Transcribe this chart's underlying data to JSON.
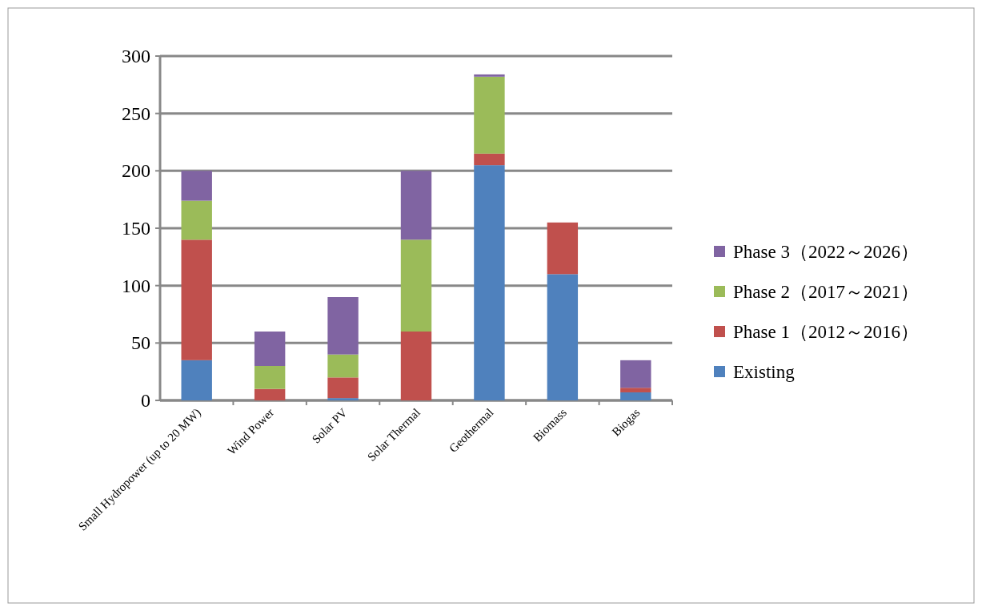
{
  "chart_data": {
    "type": "bar",
    "stacked": true,
    "categories": [
      "Small Hydropower (up to 20 MW)",
      "Wind Power",
      "Solar PV",
      "Solar Thermal",
      "Geothermal",
      "Biomass",
      "Biogas"
    ],
    "series": [
      {
        "name": "Existing",
        "color": "#4f81bd",
        "values": [
          35,
          0,
          2,
          0,
          205,
          110,
          7
        ]
      },
      {
        "name": "Phase 1（2012～2016）",
        "color": "#c0504d",
        "values": [
          105,
          10,
          18,
          60,
          10,
          45,
          4
        ]
      },
      {
        "name": "Phase 2（2017～2021）",
        "color": "#9bbb59",
        "values": [
          34,
          20,
          20,
          80,
          67,
          0,
          0
        ]
      },
      {
        "name": "Phase 3（2022～2026）",
        "color": "#8064a2",
        "values": [
          26,
          30,
          50,
          60,
          2,
          0,
          24
        ]
      }
    ],
    "ylim": [
      0,
      300
    ],
    "yticks": [
      0,
      50,
      100,
      150,
      200,
      250,
      300
    ],
    "grid": "y",
    "legend": "right"
  }
}
